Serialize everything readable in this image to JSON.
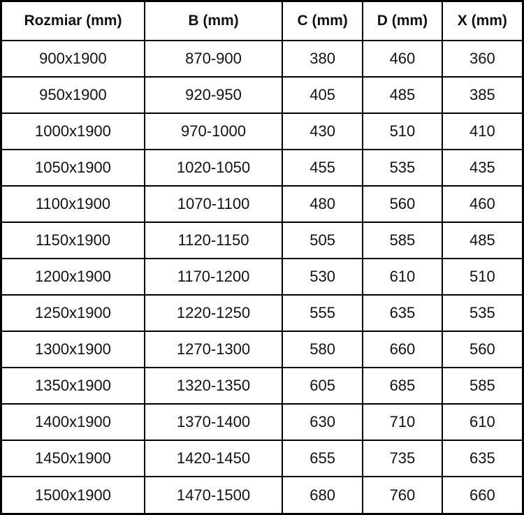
{
  "chart_data": {
    "type": "table",
    "title": "",
    "columns": [
      "Rozmiar (mm)",
      "B (mm)",
      "C (mm)",
      "D (mm)",
      "X (mm)"
    ],
    "rows": [
      [
        "900x1900",
        "870-900",
        "380",
        "460",
        "360"
      ],
      [
        "950x1900",
        "920-950",
        "405",
        "485",
        "385"
      ],
      [
        "1000x1900",
        "970-1000",
        "430",
        "510",
        "410"
      ],
      [
        "1050x1900",
        "1020-1050",
        "455",
        "535",
        "435"
      ],
      [
        "1100x1900",
        "1070-1100",
        "480",
        "560",
        "460"
      ],
      [
        "1150x1900",
        "1120-1150",
        "505",
        "585",
        "485"
      ],
      [
        "1200x1900",
        "1170-1200",
        "530",
        "610",
        "510"
      ],
      [
        "1250x1900",
        "1220-1250",
        "555",
        "635",
        "535"
      ],
      [
        "1300x1900",
        "1270-1300",
        "580",
        "660",
        "560"
      ],
      [
        "1350x1900",
        "1320-1350",
        "605",
        "685",
        "585"
      ],
      [
        "1400x1900",
        "1370-1400",
        "630",
        "710",
        "610"
      ],
      [
        "1450x1900",
        "1420-1450",
        "655",
        "735",
        "635"
      ],
      [
        "1500x1900",
        "1470-1500",
        "680",
        "760",
        "660"
      ]
    ]
  },
  "colors": {
    "border": "#000000",
    "text": "#121212",
    "background": "#ffffff"
  }
}
